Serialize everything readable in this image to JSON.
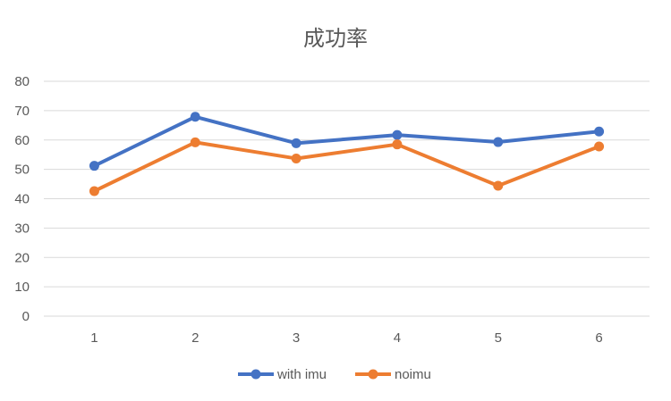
{
  "chart_data": {
    "type": "line",
    "title": "成功率",
    "categories": [
      "1",
      "2",
      "3",
      "4",
      "5",
      "6"
    ],
    "ylim": [
      0,
      80
    ],
    "yticks": [
      0,
      10,
      20,
      30,
      40,
      50,
      60,
      70,
      80
    ],
    "grid": true,
    "legend_position": "bottom",
    "series": [
      {
        "name": "with imu",
        "color": "#4472c4",
        "values": [
          51.2,
          67.9,
          58.9,
          61.7,
          59.3,
          62.9
        ]
      },
      {
        "name": "noimu",
        "color": "#ed7d31",
        "values": [
          42.6,
          59.2,
          53.7,
          58.5,
          44.4,
          57.8
        ]
      }
    ]
  }
}
